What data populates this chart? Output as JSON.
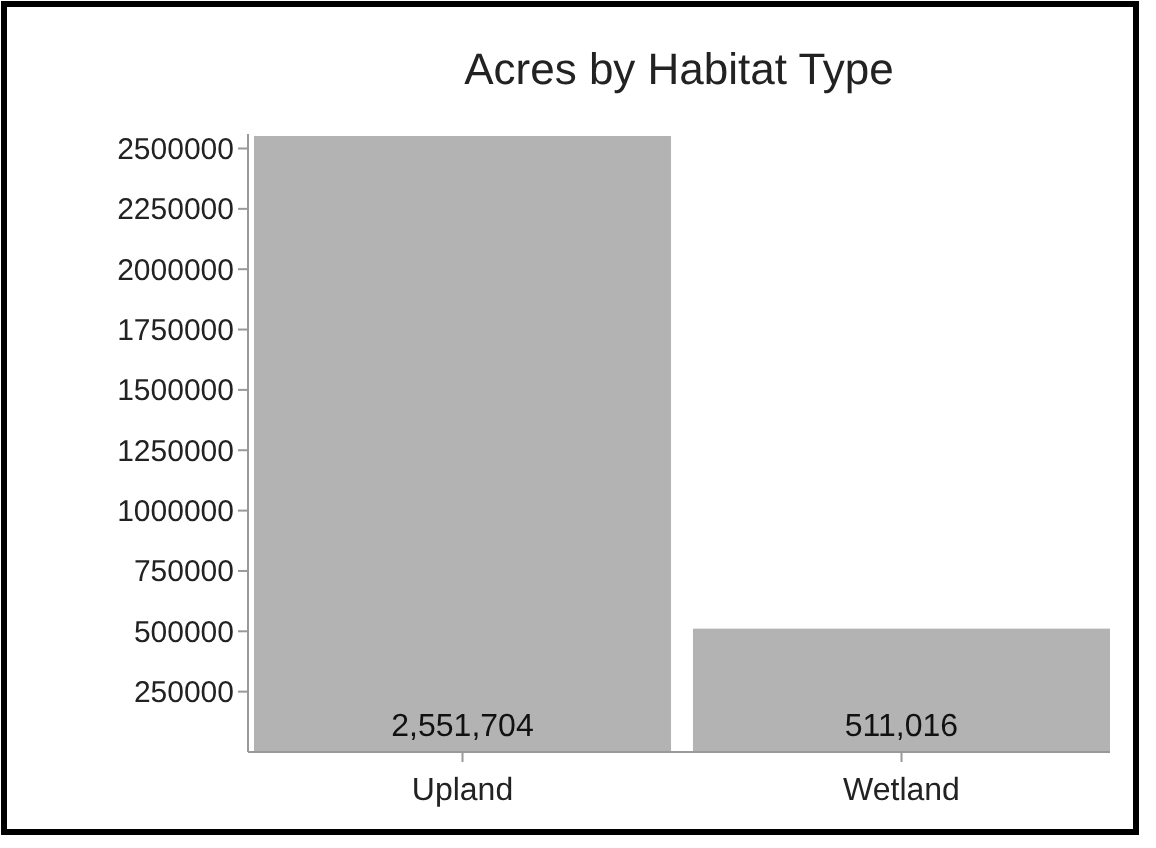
{
  "chart_data": {
    "type": "bar",
    "title": "Acres by Habitat Type",
    "categories": [
      "Upland",
      "Wetland"
    ],
    "values": [
      2551704,
      511016
    ],
    "value_labels": [
      "2,551,704",
      "511,016"
    ],
    "color": "#b3b3b3",
    "ylim": [
      0,
      2560000
    ],
    "yticks": [
      250000,
      500000,
      750000,
      1000000,
      1250000,
      1500000,
      1750000,
      2000000,
      2250000,
      2500000
    ],
    "grid": false
  }
}
